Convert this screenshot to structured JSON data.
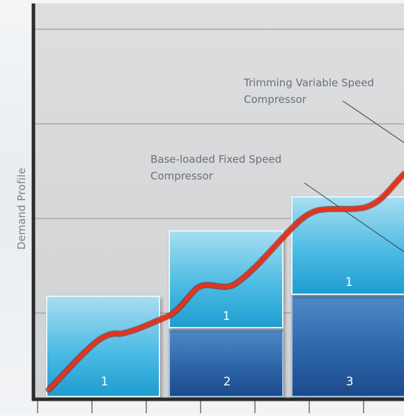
{
  "axis": {
    "ylabel": "Demand Profile"
  },
  "annotations": {
    "variable_speed": {
      "line1": "Trimming Variable Speed",
      "line2": "Compressor"
    },
    "fixed_speed": {
      "line1": "Base-loaded Fixed Speed",
      "line2": "Compressor"
    }
  },
  "colors": {
    "panel": "#d6d8da",
    "grid": "#8a8c8e",
    "axis": "#2a2a2a",
    "block_light_top": "#a4dcf0",
    "block_light_bottom": "#1f9fd2",
    "block_dark_top": "#4c86c3",
    "block_dark_bottom": "#1d4d8e",
    "demand_curve": "#e0311c",
    "label_text": "#ffffff"
  },
  "blocks": [
    {
      "id": "stage1-fixed",
      "label": "1",
      "kind": "light"
    },
    {
      "id": "stage2-variable",
      "label": "2",
      "kind": "dark"
    },
    {
      "id": "stage2-fixed",
      "label": "1",
      "kind": "light"
    },
    {
      "id": "stage3-variable",
      "label": "3",
      "kind": "dark"
    },
    {
      "id": "stage3-fixed",
      "label": "1",
      "kind": "light"
    }
  ]
}
